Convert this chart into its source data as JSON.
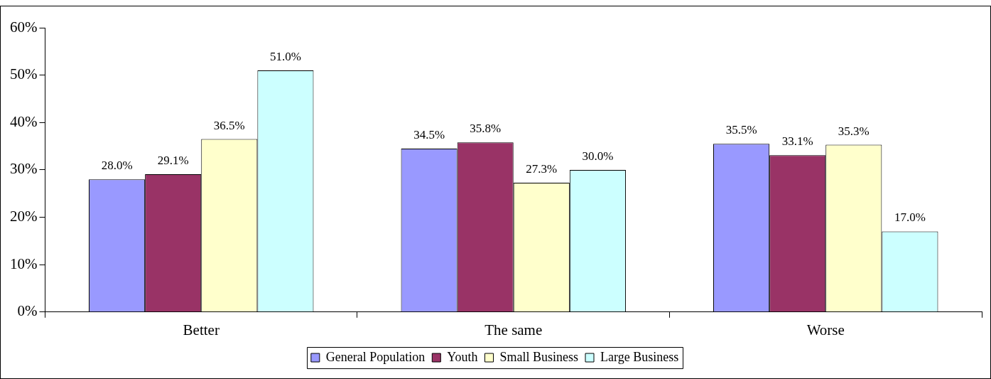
{
  "chart_data": {
    "type": "bar",
    "categories": [
      "Better",
      "The same",
      "Worse"
    ],
    "series": [
      {
        "name": "General Population",
        "color": "#9999ff",
        "values": [
          28.0,
          34.5,
          35.5
        ],
        "value_labels": [
          "28.0%",
          "34.5%",
          "35.5%"
        ]
      },
      {
        "name": "Youth",
        "color": "#993366",
        "values": [
          29.1,
          35.8,
          33.1
        ],
        "value_labels": [
          "29.1%",
          "35.8%",
          "33.1%"
        ]
      },
      {
        "name": "Small Business",
        "color": "#ffffcc",
        "values": [
          36.5,
          27.3,
          35.3
        ],
        "value_labels": [
          "36.5%",
          "27.3%",
          "35.3%"
        ]
      },
      {
        "name": "Large Business",
        "color": "#ccffff",
        "values": [
          51.0,
          30.0,
          17.0
        ],
        "value_labels": [
          "51.0%",
          "30.0%",
          "17.0%"
        ]
      }
    ],
    "ylim": [
      0,
      60
    ],
    "yticks": [
      {
        "value": 0,
        "label": "0%"
      },
      {
        "value": 10,
        "label": "10%"
      },
      {
        "value": 20,
        "label": "20%"
      },
      {
        "value": 30,
        "label": "30%"
      },
      {
        "value": 40,
        "label": "40%"
      },
      {
        "value": 50,
        "label": "50%"
      },
      {
        "value": 60,
        "label": "60%"
      }
    ],
    "legend": "bottom"
  }
}
